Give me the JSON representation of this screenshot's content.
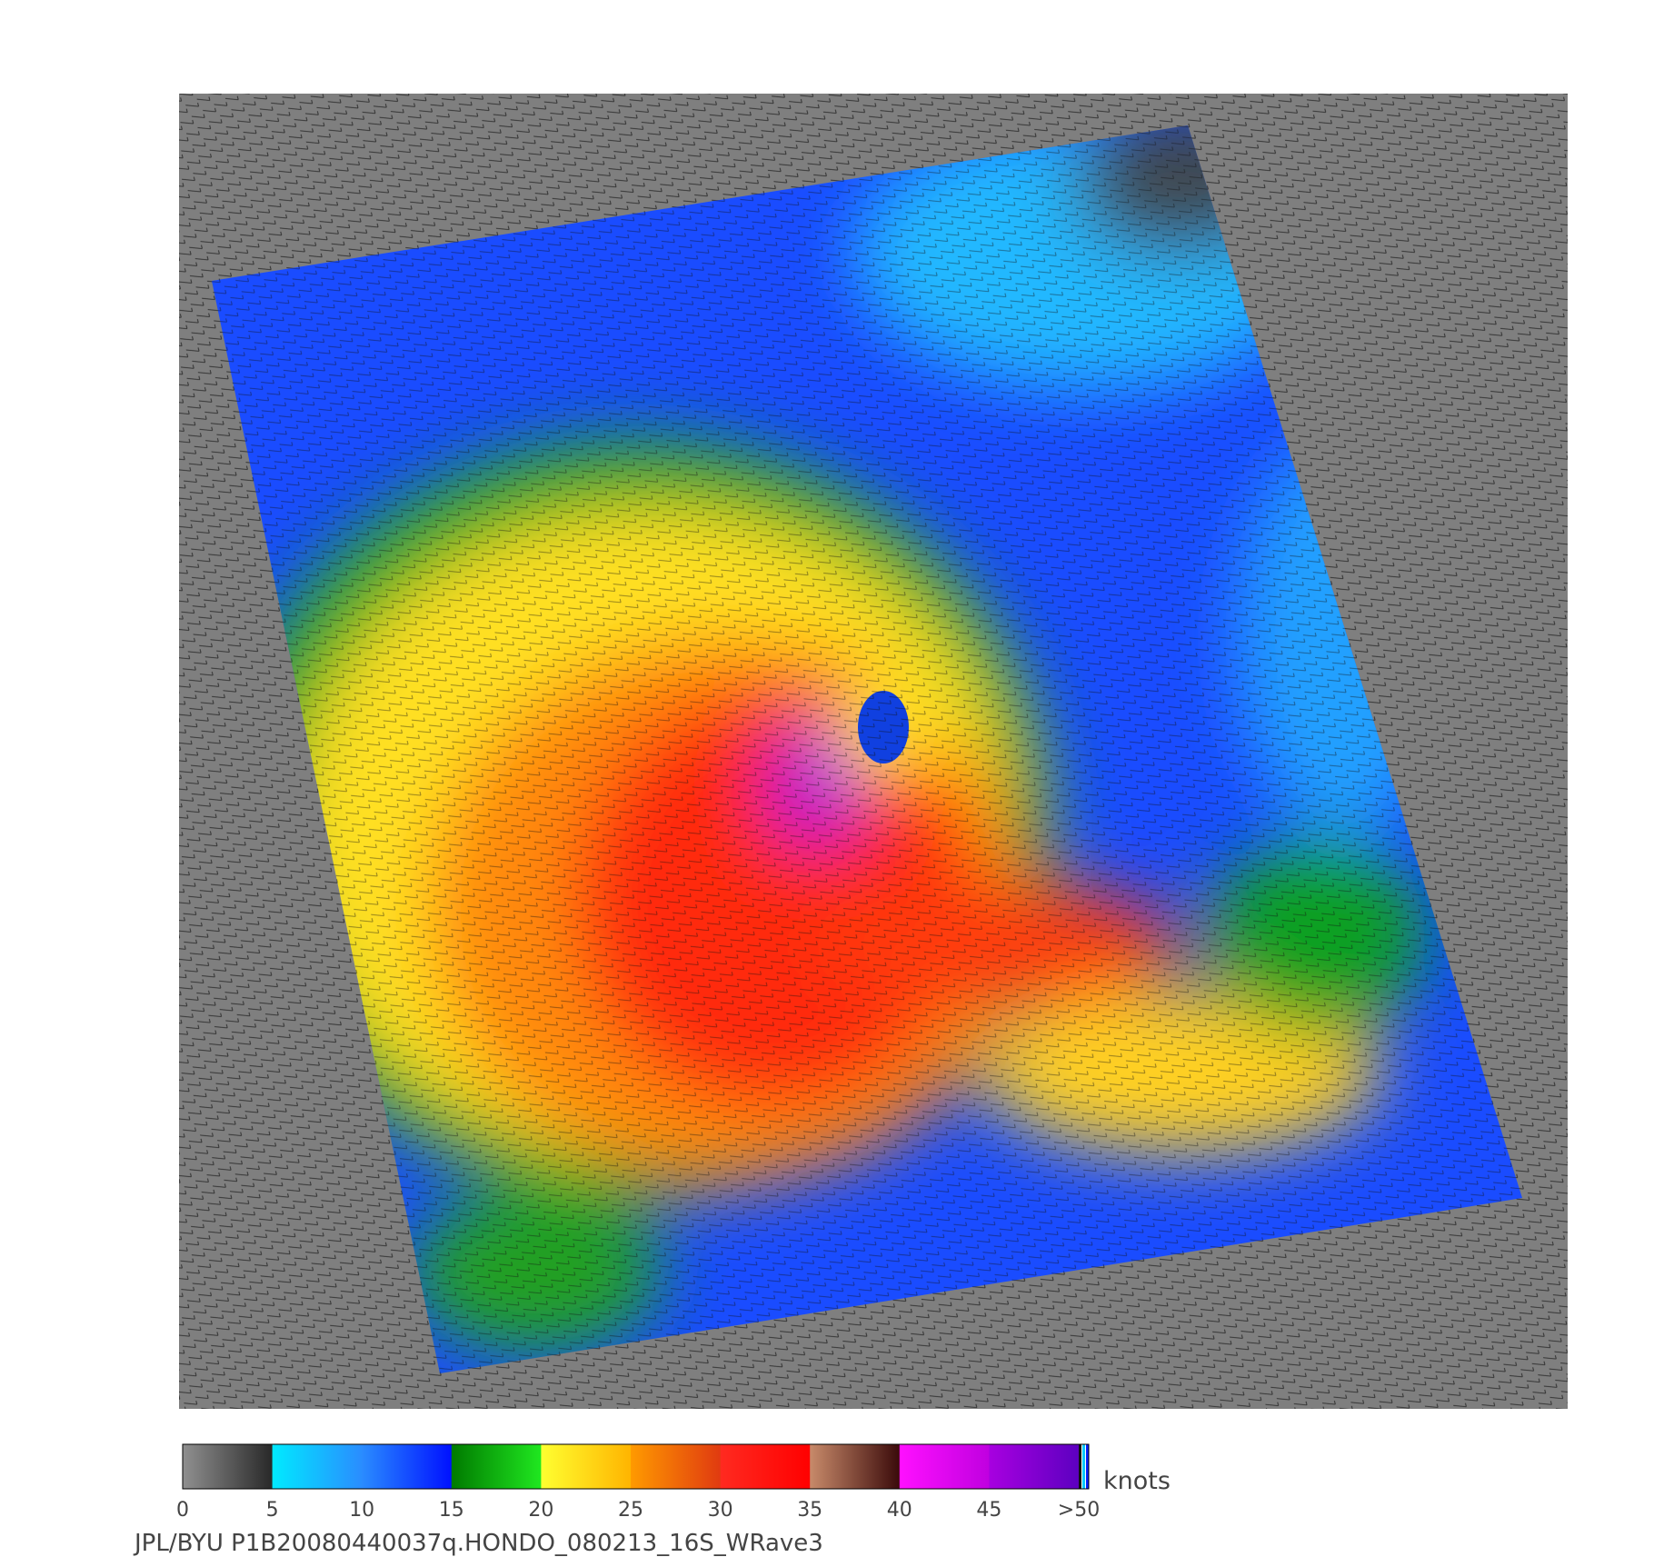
{
  "colorbar": {
    "ticks": [
      0,
      5,
      10,
      15,
      20,
      25,
      30,
      35,
      40,
      45,
      ">50"
    ],
    "colors": [
      [
        "#909090",
        "#282828"
      ],
      [
        "#00eaff",
        "#2a8cff"
      ],
      [
        "#2a8cff",
        "#0010ff"
      ],
      [
        "#007a00",
        "#20e820"
      ],
      [
        "#ffff30",
        "#ffb400"
      ],
      [
        "#ff9a00",
        "#e03a10"
      ],
      [
        "#ff2a20",
        "#ff0000"
      ],
      [
        "#c88a6a",
        "#3a0a0a"
      ],
      [
        "#ff10ff",
        "#c000e0"
      ],
      [
        "#a800e0",
        "#5c00c0"
      ]
    ],
    "unit": "knots"
  },
  "caption": "JPL/BYU  P1B20080440037q.HONDO_080213_16S_WRave3"
}
